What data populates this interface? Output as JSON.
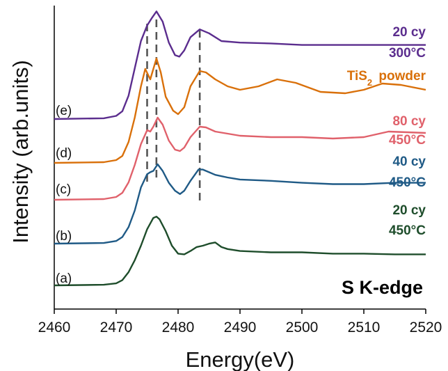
{
  "chart_data": {
    "type": "line",
    "title": "",
    "xlabel": "Energy(eV)",
    "ylabel": "Intensity (arb.units)",
    "xlim": [
      2460,
      2520
    ],
    "x_ticks": [
      "2460",
      "2470",
      "2480",
      "2490",
      "2500",
      "2510",
      "2520"
    ],
    "y_ticks_shown": false,
    "annotation": "S K-edge",
    "reference_lines_x": [
      2475,
      2476.5,
      2483.5
    ],
    "series": [
      {
        "curve_label": "(a)",
        "label_lines": [
          "20 cy",
          "450°C"
        ],
        "color": "#1e4d2b",
        "offset": 0,
        "points": [
          [
            2460,
            0
          ],
          [
            2468,
            0.01
          ],
          [
            2470,
            0.03
          ],
          [
            2471,
            0.08
          ],
          [
            2472,
            0.2
          ],
          [
            2473,
            0.38
          ],
          [
            2474,
            0.6
          ],
          [
            2475,
            0.85
          ],
          [
            2476,
            1.02
          ],
          [
            2476.5,
            1.04
          ],
          [
            2477,
            1.0
          ],
          [
            2478,
            0.82
          ],
          [
            2479,
            0.6
          ],
          [
            2480,
            0.48
          ],
          [
            2481,
            0.47
          ],
          [
            2482,
            0.52
          ],
          [
            2483,
            0.58
          ],
          [
            2484,
            0.6
          ],
          [
            2485,
            0.63
          ],
          [
            2486,
            0.65
          ],
          [
            2487,
            0.58
          ],
          [
            2488,
            0.55
          ],
          [
            2490,
            0.52
          ],
          [
            2495,
            0.5
          ],
          [
            2500,
            0.5
          ],
          [
            2505,
            0.48
          ],
          [
            2510,
            0.48
          ],
          [
            2515,
            0.47
          ],
          [
            2520,
            0.47
          ]
        ]
      },
      {
        "curve_label": "(b)",
        "label_lines": [
          "40 cy",
          "450°C"
        ],
        "color": "#1f5a86",
        "offset": 1,
        "points": [
          [
            2460,
            0
          ],
          [
            2468,
            0.01
          ],
          [
            2470,
            0.04
          ],
          [
            2471,
            0.1
          ],
          [
            2472,
            0.25
          ],
          [
            2473,
            0.5
          ],
          [
            2474,
            0.85
          ],
          [
            2475,
            1.05
          ],
          [
            2475.5,
            1.08
          ],
          [
            2476,
            1.1
          ],
          [
            2476.7,
            1.2
          ],
          [
            2477.5,
            1.1
          ],
          [
            2478.5,
            0.92
          ],
          [
            2479.5,
            0.8
          ],
          [
            2480.3,
            0.75
          ],
          [
            2481,
            0.8
          ],
          [
            2482,
            0.95
          ],
          [
            2483.3,
            1.12
          ],
          [
            2484,
            1.12
          ],
          [
            2485,
            1.08
          ],
          [
            2486,
            1.04
          ],
          [
            2488,
            1.0
          ],
          [
            2490,
            0.97
          ],
          [
            2495,
            0.95
          ],
          [
            2500,
            0.92
          ],
          [
            2505,
            0.9
          ],
          [
            2510,
            0.9
          ],
          [
            2515,
            0.92
          ],
          [
            2520,
            0.92
          ]
        ]
      },
      {
        "curve_label": "(c)",
        "label_lines": [
          "80 cy",
          "450°C"
        ],
        "color": "#e0616b",
        "offset": 2,
        "points": [
          [
            2460,
            0
          ],
          [
            2468,
            0.01
          ],
          [
            2470,
            0.04
          ],
          [
            2471,
            0.1
          ],
          [
            2472,
            0.25
          ],
          [
            2473,
            0.5
          ],
          [
            2474,
            0.8
          ],
          [
            2475,
            1.0
          ],
          [
            2475.5,
            0.98
          ],
          [
            2476,
            1.05
          ],
          [
            2476.7,
            1.18
          ],
          [
            2477.5,
            1.08
          ],
          [
            2478.5,
            0.85
          ],
          [
            2479.5,
            0.72
          ],
          [
            2480.3,
            0.7
          ],
          [
            2481,
            0.75
          ],
          [
            2482,
            0.9
          ],
          [
            2483.5,
            1.05
          ],
          [
            2484.5,
            1.04
          ],
          [
            2486,
            0.98
          ],
          [
            2488,
            0.95
          ],
          [
            2490,
            0.92
          ],
          [
            2495,
            0.9
          ],
          [
            2500,
            0.9
          ],
          [
            2505,
            0.88
          ],
          [
            2510,
            0.9
          ],
          [
            2514,
            0.98
          ],
          [
            2517,
            0.97
          ],
          [
            2520,
            0.96
          ]
        ]
      },
      {
        "curve_label": "(d)",
        "label_lines": [
          "TiS2 powder"
        ],
        "label_subscript": "2",
        "color": "#d9700a",
        "offset": 3,
        "points": [
          [
            2460,
            0
          ],
          [
            2468,
            0.01
          ],
          [
            2470,
            0.04
          ],
          [
            2471,
            0.1
          ],
          [
            2472,
            0.3
          ],
          [
            2473,
            0.65
          ],
          [
            2474,
            1.1
          ],
          [
            2474.7,
            1.35
          ],
          [
            2475.5,
            1.2
          ],
          [
            2476.5,
            1.5
          ],
          [
            2477.2,
            1.3
          ],
          [
            2478,
            0.95
          ],
          [
            2479.2,
            0.75
          ],
          [
            2480,
            0.7
          ],
          [
            2481,
            0.8
          ],
          [
            2482,
            1.1
          ],
          [
            2483.5,
            1.32
          ],
          [
            2484.5,
            1.3
          ],
          [
            2486,
            1.2
          ],
          [
            2488,
            1.1
          ],
          [
            2490,
            1.05
          ],
          [
            2493,
            1.1
          ],
          [
            2496,
            1.2
          ],
          [
            2499,
            1.15
          ],
          [
            2503,
            1.02
          ],
          [
            2507,
            1.0
          ],
          [
            2510,
            1.05
          ],
          [
            2513,
            1.14
          ],
          [
            2516,
            1.12
          ],
          [
            2520,
            1.05
          ]
        ]
      },
      {
        "curve_label": "(e)",
        "label_lines": [
          "20 cy",
          "300°C"
        ],
        "color": "#5b2d8e",
        "offset": 4,
        "points": [
          [
            2460,
            0
          ],
          [
            2468,
            0.01
          ],
          [
            2470,
            0.04
          ],
          [
            2471,
            0.1
          ],
          [
            2472,
            0.3
          ],
          [
            2473,
            0.65
          ],
          [
            2474,
            1.0
          ],
          [
            2475,
            1.2
          ],
          [
            2475.8,
            1.3
          ],
          [
            2476.5,
            1.38
          ],
          [
            2477.5,
            1.25
          ],
          [
            2478.5,
            0.98
          ],
          [
            2479.5,
            0.82
          ],
          [
            2480.2,
            0.8
          ],
          [
            2481,
            0.88
          ],
          [
            2482,
            1.05
          ],
          [
            2483.5,
            1.15
          ],
          [
            2485,
            1.1
          ],
          [
            2487,
            1.0
          ],
          [
            2490,
            0.98
          ],
          [
            2495,
            0.97
          ],
          [
            2500,
            0.95
          ],
          [
            2505,
            0.95
          ],
          [
            2510,
            0.95
          ],
          [
            2515,
            0.95
          ],
          [
            2520,
            0.95
          ]
        ]
      }
    ]
  }
}
